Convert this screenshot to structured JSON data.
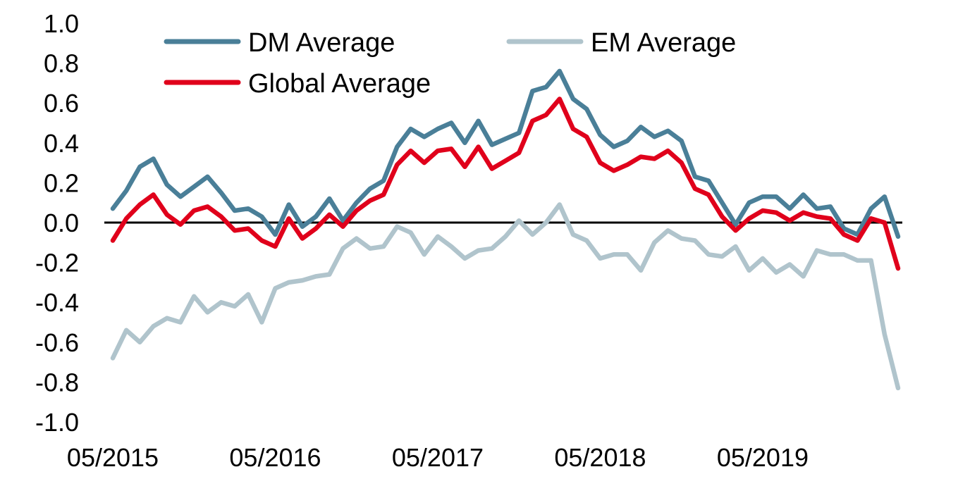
{
  "chart_data": {
    "type": "line",
    "title": "",
    "xlabel": "",
    "ylabel": "",
    "ylim": [
      -1.0,
      1.0
    ],
    "y_ticks": [
      "1.0",
      "0.8",
      "0.6",
      "0.4",
      "0.2",
      "0.0",
      "-0.2",
      "-0.4",
      "-0.6",
      "-0.8",
      "-1.0"
    ],
    "x_ticks": [
      {
        "label": "05/2015",
        "index": 0
      },
      {
        "label": "05/2016",
        "index": 12
      },
      {
        "label": "05/2017",
        "index": 24
      },
      {
        "label": "05/2018",
        "index": 36
      },
      {
        "label": "05/2019",
        "index": 48
      }
    ],
    "n_points": 59,
    "legend_position": "top",
    "series": [
      {
        "name": "DM Average",
        "color": "#4a7f98",
        "values": [
          0.07,
          0.16,
          0.28,
          0.32,
          0.19,
          0.13,
          0.18,
          0.23,
          0.15,
          0.06,
          0.07,
          0.03,
          -0.06,
          0.09,
          -0.02,
          0.03,
          0.12,
          0.01,
          0.1,
          0.17,
          0.21,
          0.38,
          0.47,
          0.43,
          0.47,
          0.5,
          0.4,
          0.51,
          0.39,
          0.42,
          0.45,
          0.66,
          0.68,
          0.76,
          0.62,
          0.57,
          0.44,
          0.38,
          0.41,
          0.48,
          0.43,
          0.46,
          0.41,
          0.23,
          0.21,
          0.1,
          -0.01,
          0.1,
          0.13,
          0.13,
          0.07,
          0.14,
          0.07,
          0.08,
          -0.03,
          -0.06,
          0.07,
          0.13,
          -0.07
        ]
      },
      {
        "name": "EM Average",
        "color": "#b0c4cc",
        "values": [
          -0.68,
          -0.54,
          -0.6,
          -0.52,
          -0.48,
          -0.5,
          -0.37,
          -0.45,
          -0.4,
          -0.42,
          -0.36,
          -0.5,
          -0.33,
          -0.3,
          -0.29,
          -0.27,
          -0.26,
          -0.13,
          -0.08,
          -0.13,
          -0.12,
          -0.02,
          -0.05,
          -0.16,
          -0.07,
          -0.12,
          -0.18,
          -0.14,
          -0.13,
          -0.07,
          0.01,
          -0.06,
          0.0,
          0.09,
          -0.06,
          -0.09,
          -0.18,
          -0.16,
          -0.16,
          -0.24,
          -0.1,
          -0.04,
          -0.08,
          -0.09,
          -0.16,
          -0.17,
          -0.12,
          -0.24,
          -0.18,
          -0.25,
          -0.21,
          -0.27,
          -0.14,
          -0.16,
          -0.16,
          -0.19,
          -0.19,
          -0.56,
          -0.83
        ]
      },
      {
        "name": "Global Average",
        "color": "#e0001b",
        "values": [
          -0.09,
          0.02,
          0.09,
          0.14,
          0.04,
          -0.01,
          0.06,
          0.08,
          0.03,
          -0.04,
          -0.03,
          -0.09,
          -0.12,
          0.02,
          -0.08,
          -0.03,
          0.04,
          -0.02,
          0.06,
          0.11,
          0.14,
          0.29,
          0.36,
          0.3,
          0.36,
          0.37,
          0.28,
          0.38,
          0.27,
          0.31,
          0.35,
          0.51,
          0.54,
          0.62,
          0.47,
          0.43,
          0.3,
          0.26,
          0.29,
          0.33,
          0.32,
          0.36,
          0.3,
          0.17,
          0.14,
          0.03,
          -0.04,
          0.02,
          0.06,
          0.05,
          0.01,
          0.05,
          0.03,
          0.02,
          -0.06,
          -0.09,
          0.02,
          0.0,
          -0.23
        ]
      }
    ]
  }
}
